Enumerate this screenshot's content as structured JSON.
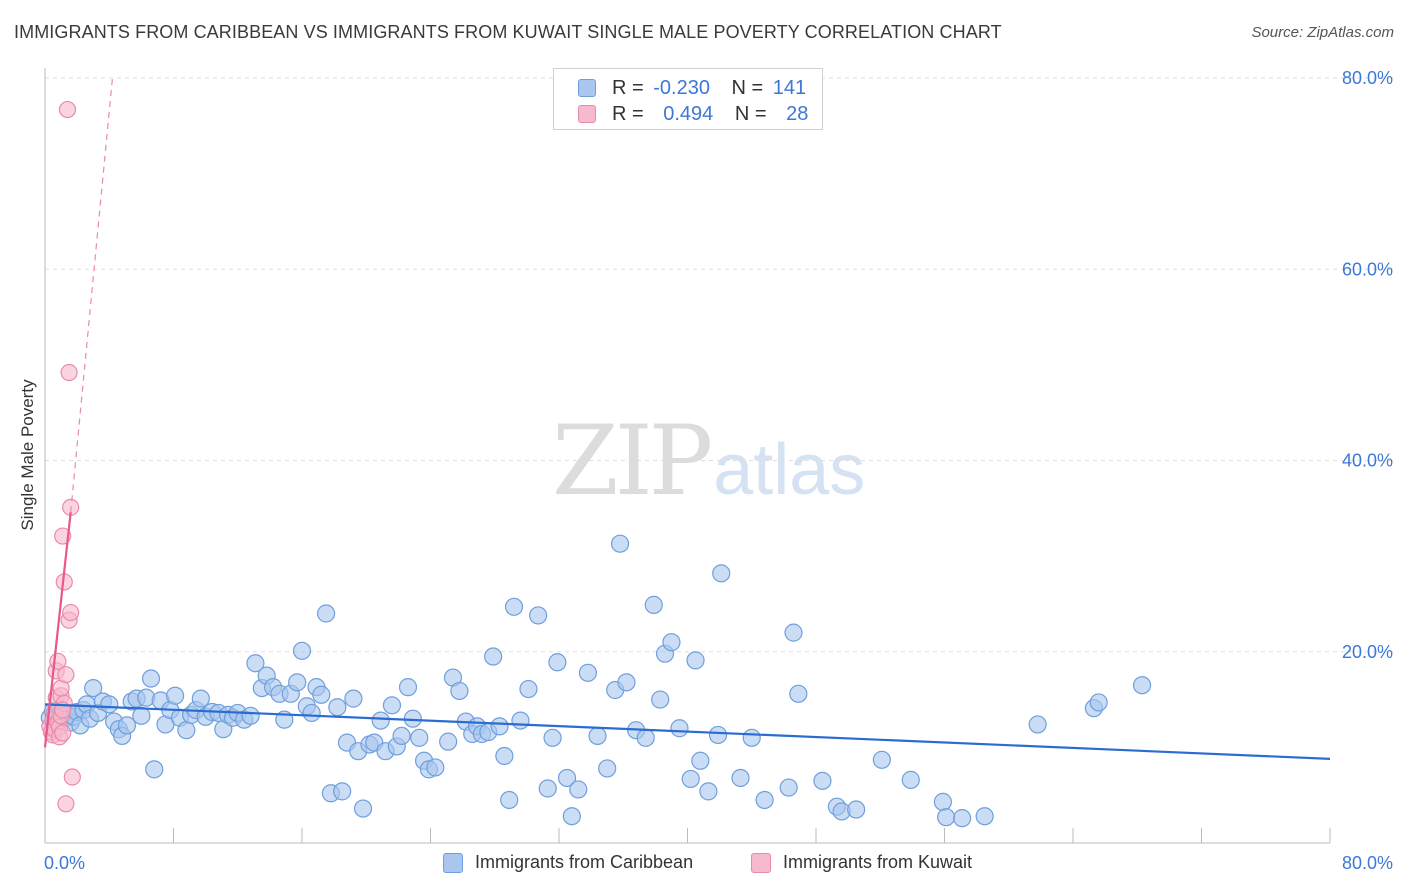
{
  "header": {
    "title": "IMMIGRANTS FROM CARIBBEAN VS IMMIGRANTS FROM KUWAIT SINGLE MALE POVERTY CORRELATION CHART",
    "source": "Source: ZipAtlas.com"
  },
  "watermark": {
    "zip": "ZIP",
    "atlas": "atlas"
  },
  "legend": {
    "rows": [
      {
        "r_label": "R =",
        "r_value": "-0.230",
        "n_label": "N =",
        "n_value": "141",
        "color": "#a9c6ee"
      },
      {
        "r_label": "R =",
        "r_value": "0.494",
        "n_label": "N =",
        "n_value": "28",
        "color": "#f6b9cd"
      }
    ]
  },
  "bottom_legend": [
    {
      "label": "Immigrants from Caribbean",
      "color": "#a9c6ee"
    },
    {
      "label": "Immigrants from Kuwait",
      "color": "#f6b9cd"
    }
  ],
  "colors": {
    "caribbean_fill": "#a9c6ee",
    "caribbean_stroke": "#6f9fdc",
    "caribbean_line": "#2a6ccf",
    "kuwait_fill": "#f6b9cd",
    "kuwait_stroke": "#ea8aaa",
    "kuwait_line": "#e8588a",
    "tick_label": "#3b78d8",
    "grid": "#dddddd"
  },
  "chart_data": {
    "type": "scatter",
    "title": "IMMIGRANTS FROM CARIBBEAN VS IMMIGRANTS FROM KUWAIT SINGLE MALE POVERTY CORRELATION CHART",
    "xlabel": "",
    "ylabel": "Single Male Poverty",
    "xlim": [
      0,
      80
    ],
    "ylim": [
      0,
      80
    ],
    "x_tick_labels": [
      "0.0%",
      "80.0%"
    ],
    "y_ticks": [
      20,
      40,
      60,
      80
    ],
    "y_tick_labels": [
      "20.0%",
      "40.0%",
      "60.0%",
      "80.0%"
    ],
    "grid": true,
    "legend_position": "top-center",
    "series": [
      {
        "name": "Immigrants from Caribbean",
        "r": -0.23,
        "n": 141,
        "trend": {
          "x": [
            0,
            80
          ],
          "y": [
            14.5,
            8.8
          ]
        },
        "points": [
          [
            0.3,
            13.1
          ],
          [
            0.5,
            13.8
          ],
          [
            0.6,
            12.5
          ],
          [
            0.7,
            13.3
          ],
          [
            0.8,
            12.8
          ],
          [
            0.9,
            14.0
          ],
          [
            1.0,
            13.6
          ],
          [
            1.2,
            13.0
          ],
          [
            1.4,
            13.4
          ],
          [
            1.6,
            12.6
          ],
          [
            1.8,
            13.2
          ],
          [
            2.0,
            13.7
          ],
          [
            2.2,
            12.3
          ],
          [
            2.4,
            13.9
          ],
          [
            2.6,
            14.5
          ],
          [
            2.8,
            13.0
          ],
          [
            3.0,
            16.2
          ],
          [
            3.3,
            13.6
          ],
          [
            3.6,
            14.8
          ],
          [
            4.0,
            14.5
          ],
          [
            4.3,
            12.7
          ],
          [
            4.6,
            11.9
          ],
          [
            4.8,
            11.2
          ],
          [
            5.1,
            12.3
          ],
          [
            5.4,
            14.8
          ],
          [
            5.7,
            15.1
          ],
          [
            6.0,
            13.3
          ],
          [
            6.3,
            15.2
          ],
          [
            6.6,
            17.2
          ],
          [
            6.8,
            7.7
          ],
          [
            7.2,
            14.9
          ],
          [
            7.5,
            12.4
          ],
          [
            7.8,
            13.9
          ],
          [
            8.1,
            15.4
          ],
          [
            8.4,
            13.1
          ],
          [
            8.8,
            11.8
          ],
          [
            9.1,
            13.4
          ],
          [
            9.4,
            13.9
          ],
          [
            9.7,
            15.1
          ],
          [
            10.0,
            13.2
          ],
          [
            10.4,
            13.7
          ],
          [
            10.8,
            13.6
          ],
          [
            11.1,
            11.9
          ],
          [
            11.4,
            13.4
          ],
          [
            11.7,
            13.1
          ],
          [
            12.0,
            13.6
          ],
          [
            12.4,
            12.9
          ],
          [
            12.8,
            13.3
          ],
          [
            13.1,
            18.8
          ],
          [
            13.5,
            16.2
          ],
          [
            13.8,
            17.5
          ],
          [
            14.2,
            16.3
          ],
          [
            14.6,
            15.6
          ],
          [
            14.9,
            12.9
          ],
          [
            15.3,
            15.6
          ],
          [
            15.7,
            16.8
          ],
          [
            16.0,
            20.1
          ],
          [
            16.3,
            14.3
          ],
          [
            16.6,
            13.6
          ],
          [
            16.9,
            16.3
          ],
          [
            17.2,
            15.5
          ],
          [
            17.5,
            24.0
          ],
          [
            17.8,
            5.2
          ],
          [
            18.2,
            14.2
          ],
          [
            18.5,
            5.4
          ],
          [
            18.8,
            10.5
          ],
          [
            19.2,
            15.1
          ],
          [
            19.5,
            9.6
          ],
          [
            19.8,
            3.6
          ],
          [
            20.2,
            10.3
          ],
          [
            20.5,
            10.5
          ],
          [
            20.9,
            12.8
          ],
          [
            21.2,
            9.6
          ],
          [
            21.6,
            14.4
          ],
          [
            21.9,
            10.1
          ],
          [
            22.2,
            11.2
          ],
          [
            22.6,
            16.3
          ],
          [
            22.9,
            13.0
          ],
          [
            23.3,
            11.0
          ],
          [
            23.6,
            8.6
          ],
          [
            23.9,
            7.7
          ],
          [
            24.3,
            7.9
          ],
          [
            25.1,
            10.6
          ],
          [
            25.4,
            17.3
          ],
          [
            25.8,
            15.9
          ],
          [
            26.2,
            12.7
          ],
          [
            26.6,
            11.4
          ],
          [
            26.9,
            12.2
          ],
          [
            27.2,
            11.4
          ],
          [
            27.6,
            11.6
          ],
          [
            27.9,
            19.5
          ],
          [
            28.3,
            12.2
          ],
          [
            28.6,
            9.1
          ],
          [
            28.9,
            4.5
          ],
          [
            29.2,
            24.7
          ],
          [
            29.6,
            12.8
          ],
          [
            30.1,
            16.1
          ],
          [
            30.7,
            23.8
          ],
          [
            31.3,
            5.7
          ],
          [
            31.6,
            11.0
          ],
          [
            31.9,
            18.9
          ],
          [
            32.5,
            6.8
          ],
          [
            32.8,
            2.8
          ],
          [
            33.2,
            5.6
          ],
          [
            33.8,
            17.8
          ],
          [
            34.4,
            11.2
          ],
          [
            35.0,
            7.8
          ],
          [
            35.5,
            16.0
          ],
          [
            35.8,
            31.3
          ],
          [
            36.2,
            16.8
          ],
          [
            36.8,
            11.8
          ],
          [
            37.4,
            11.0
          ],
          [
            37.9,
            24.9
          ],
          [
            38.3,
            15.0
          ],
          [
            38.6,
            19.8
          ],
          [
            39.0,
            21.0
          ],
          [
            39.5,
            12.0
          ],
          [
            40.2,
            6.7
          ],
          [
            40.5,
            19.1
          ],
          [
            40.8,
            8.6
          ],
          [
            41.3,
            5.4
          ],
          [
            41.9,
            11.3
          ],
          [
            42.1,
            28.2
          ],
          [
            43.3,
            6.8
          ],
          [
            44.0,
            11.0
          ],
          [
            44.8,
            4.5
          ],
          [
            46.3,
            5.8
          ],
          [
            46.6,
            22.0
          ],
          [
            46.9,
            15.6
          ],
          [
            48.4,
            6.5
          ],
          [
            49.3,
            3.8
          ],
          [
            49.6,
            3.3
          ],
          [
            50.5,
            3.5
          ],
          [
            52.1,
            8.7
          ],
          [
            53.9,
            6.6
          ],
          [
            55.9,
            4.3
          ],
          [
            56.1,
            2.7
          ],
          [
            57.1,
            2.6
          ],
          [
            58.5,
            2.8
          ],
          [
            61.8,
            12.4
          ],
          [
            65.3,
            14.1
          ],
          [
            65.6,
            14.7
          ],
          [
            68.3,
            16.5
          ]
        ]
      },
      {
        "name": "Immigrants from Kuwait",
        "r": 0.494,
        "n": 28,
        "trend": {
          "x": [
            0.0,
            1.6
          ],
          "y": [
            10.0,
            34.6
          ]
        },
        "trend_extension": {
          "x": [
            1.6,
            4.2
          ],
          "y": [
            34.6,
            80.0
          ]
        },
        "points": [
          [
            0.3,
            12.2
          ],
          [
            0.4,
            11.6
          ],
          [
            0.5,
            12.8
          ],
          [
            0.5,
            11.3
          ],
          [
            0.6,
            13.7
          ],
          [
            0.6,
            11.9
          ],
          [
            0.7,
            15.2
          ],
          [
            0.7,
            18.0
          ],
          [
            0.8,
            19.0
          ],
          [
            0.8,
            12.6
          ],
          [
            0.9,
            12.1
          ],
          [
            0.9,
            11.1
          ],
          [
            1.0,
            15.4
          ],
          [
            1.0,
            16.2
          ],
          [
            1.0,
            13.3
          ],
          [
            1.1,
            11.5
          ],
          [
            1.1,
            32.1
          ],
          [
            1.2,
            27.3
          ],
          [
            1.2,
            14.6
          ],
          [
            1.3,
            17.6
          ],
          [
            1.3,
            4.1
          ],
          [
            1.4,
            76.7
          ],
          [
            1.5,
            49.2
          ],
          [
            1.5,
            23.3
          ],
          [
            1.6,
            35.1
          ],
          [
            1.6,
            24.1
          ],
          [
            1.7,
            6.9
          ],
          [
            1.1,
            13.9
          ]
        ]
      }
    ]
  }
}
